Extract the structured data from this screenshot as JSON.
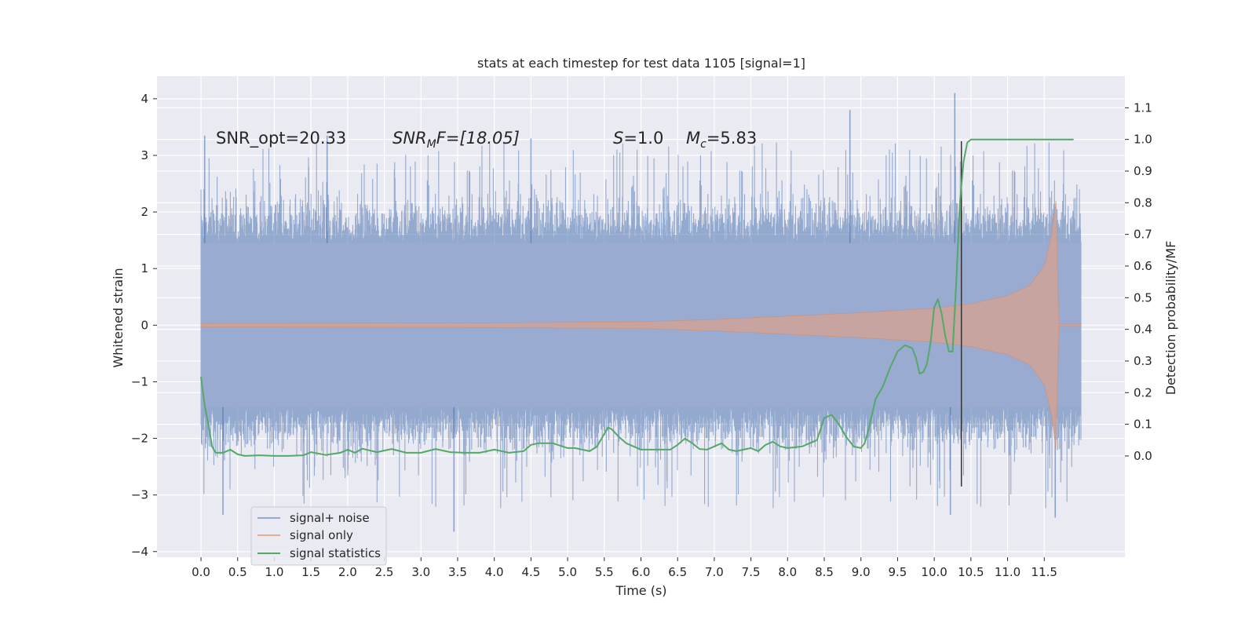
{
  "chart_data": {
    "type": "line",
    "title": "stats at each timestep for test data 1105 [signal=1]",
    "xlabel": "Time (s)",
    "ylabel": "Whitened strain",
    "y2label": "Detection probability/MF",
    "xlim": [
      -0.6,
      12.6
    ],
    "ylim": [
      -4.1,
      4.4
    ],
    "y2lim": [
      -0.32,
      1.2
    ],
    "x_ticks": [
      0.0,
      0.5,
      1.0,
      1.5,
      2.0,
      2.5,
      3.0,
      3.5,
      4.0,
      4.5,
      5.0,
      5.5,
      6.0,
      6.5,
      7.0,
      7.5,
      8.0,
      8.5,
      9.0,
      9.5,
      10.0,
      10.5,
      11.0,
      11.5
    ],
    "x_tick_labels": [
      "0.0",
      "0.5",
      "1.0",
      "1.5",
      "2.0",
      "2.5",
      "3.0",
      "3.5",
      "4.0",
      "4.5",
      "5.0",
      "5.5",
      "6.0",
      "6.5",
      "7.0",
      "7.5",
      "8.0",
      "8.5",
      "9.0",
      "9.5",
      "10.0",
      "10.5",
      "11.0",
      "11.5"
    ],
    "y_ticks": [
      -4,
      -3,
      -2,
      -1,
      0,
      1,
      2,
      3,
      4
    ],
    "y_tick_labels": [
      "−4",
      "−3",
      "−2",
      "−1",
      "0",
      "1",
      "2",
      "3",
      "4"
    ],
    "y2_ticks": [
      0.0,
      0.1,
      0.2,
      0.3,
      0.4,
      0.5,
      0.6,
      0.7,
      0.8,
      0.9,
      1.0,
      1.1
    ],
    "y2_tick_labels": [
      "0.0",
      "0.1",
      "0.2",
      "0.3",
      "0.4",
      "0.5",
      "0.6",
      "0.7",
      "0.8",
      "0.9",
      "1.0",
      "1.1"
    ],
    "grid": true,
    "legend_position": "lower-left",
    "annotations": {
      "snr_opt": "SNR_opt=20.33",
      "snr_mf_sym": "SNR",
      "snr_mf_sub": "M",
      "snr_mf_rest": "F=[18.05]",
      "s_sym": "S",
      "s_rest": "=1.0",
      "mc_sym": "M",
      "mc_sub": "c",
      "mc_rest": "=5.83"
    },
    "vertical_line_x": 10.37,
    "series": [
      {
        "name": "signal+ noise",
        "color": "#4c72b0",
        "axis": "left",
        "x_range": [
          0.0,
          12.0
        ],
        "core_band": [
          -1.45,
          1.45
        ],
        "typical_peaks": [
          -2.3,
          2.3
        ],
        "notable_peaks": [
          {
            "x": 0.05,
            "y": 3.35
          },
          {
            "x": 0.3,
            "y": -3.35
          },
          {
            "x": 1.72,
            "y": 3.35
          },
          {
            "x": 3.45,
            "y": -3.65
          },
          {
            "x": 4.5,
            "y": 3.3
          },
          {
            "x": 8.85,
            "y": 3.8
          },
          {
            "x": 10.28,
            "y": 4.1
          },
          {
            "x": 10.22,
            "y": -3.35
          },
          {
            "x": 11.65,
            "y": -3.4
          }
        ]
      },
      {
        "name": "signal only",
        "color": "#dd8452",
        "axis": "left",
        "envelope_x": [
          0.0,
          4.0,
          6.0,
          7.0,
          8.0,
          9.0,
          10.0,
          10.5,
          11.0,
          11.3,
          11.5,
          11.6,
          11.66,
          11.7,
          12.0
        ],
        "envelope_amplitude": [
          0.03,
          0.04,
          0.06,
          0.1,
          0.16,
          0.22,
          0.3,
          0.38,
          0.52,
          0.7,
          1.05,
          1.6,
          2.2,
          0.02,
          0.02
        ]
      },
      {
        "name": "signal statistics",
        "color": "#55a868",
        "axis": "right",
        "x": [
          0.0,
          0.05,
          0.1,
          0.15,
          0.2,
          0.3,
          0.4,
          0.5,
          0.6,
          0.8,
          1.0,
          1.2,
          1.4,
          1.5,
          1.7,
          1.9,
          2.0,
          2.1,
          2.2,
          2.4,
          2.6,
          2.8,
          3.0,
          3.2,
          3.4,
          3.6,
          3.8,
          4.0,
          4.2,
          4.4,
          4.5,
          4.6,
          4.8,
          5.0,
          5.1,
          5.3,
          5.4,
          5.5,
          5.55,
          5.6,
          5.7,
          5.8,
          6.0,
          6.2,
          6.4,
          6.5,
          6.6,
          6.7,
          6.8,
          6.9,
          7.0,
          7.1,
          7.2,
          7.3,
          7.4,
          7.5,
          7.6,
          7.7,
          7.8,
          7.9,
          8.0,
          8.2,
          8.3,
          8.4,
          8.5,
          8.6,
          8.7,
          8.8,
          8.9,
          9.0,
          9.05,
          9.1,
          9.2,
          9.3,
          9.4,
          9.5,
          9.6,
          9.7,
          9.75,
          9.8,
          9.85,
          9.9,
          9.95,
          10.0,
          10.05,
          10.1,
          10.15,
          10.2,
          10.25,
          10.3,
          10.35,
          10.4,
          10.45,
          10.5,
          10.6,
          11.0,
          11.5,
          11.9
        ],
        "y": [
          0.25,
          0.16,
          0.1,
          0.03,
          0.01,
          0.01,
          0.02,
          0.005,
          0.0,
          0.002,
          0.0,
          0.0,
          0.002,
          0.012,
          0.003,
          0.01,
          0.02,
          0.01,
          0.023,
          0.012,
          0.022,
          0.01,
          0.01,
          0.022,
          0.012,
          0.01,
          0.01,
          0.02,
          0.01,
          0.015,
          0.035,
          0.04,
          0.04,
          0.025,
          0.025,
          0.015,
          0.03,
          0.07,
          0.09,
          0.085,
          0.06,
          0.04,
          0.02,
          0.02,
          0.02,
          0.035,
          0.055,
          0.04,
          0.022,
          0.02,
          0.03,
          0.04,
          0.02,
          0.015,
          0.02,
          0.025,
          0.015,
          0.035,
          0.045,
          0.03,
          0.025,
          0.03,
          0.04,
          0.05,
          0.12,
          0.13,
          0.1,
          0.06,
          0.03,
          0.025,
          0.04,
          0.08,
          0.18,
          0.22,
          0.28,
          0.33,
          0.35,
          0.34,
          0.31,
          0.26,
          0.265,
          0.29,
          0.36,
          0.47,
          0.495,
          0.45,
          0.38,
          0.33,
          0.33,
          0.55,
          0.8,
          0.93,
          0.99,
          1.0,
          1.0,
          1.0,
          1.0,
          1.0
        ]
      }
    ]
  }
}
